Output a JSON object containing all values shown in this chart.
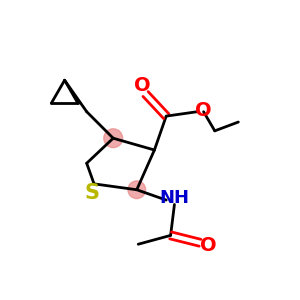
{
  "background_color": "#ffffff",
  "atom_colors": {
    "O": "#ff0000",
    "N": "#0000cc",
    "S": "#b8b800",
    "C": "#000000"
  },
  "pink_circle_color": "#e88080",
  "pink_circle_alpha": 0.65,
  "bond_lw": 2.0,
  "font_size": 13
}
